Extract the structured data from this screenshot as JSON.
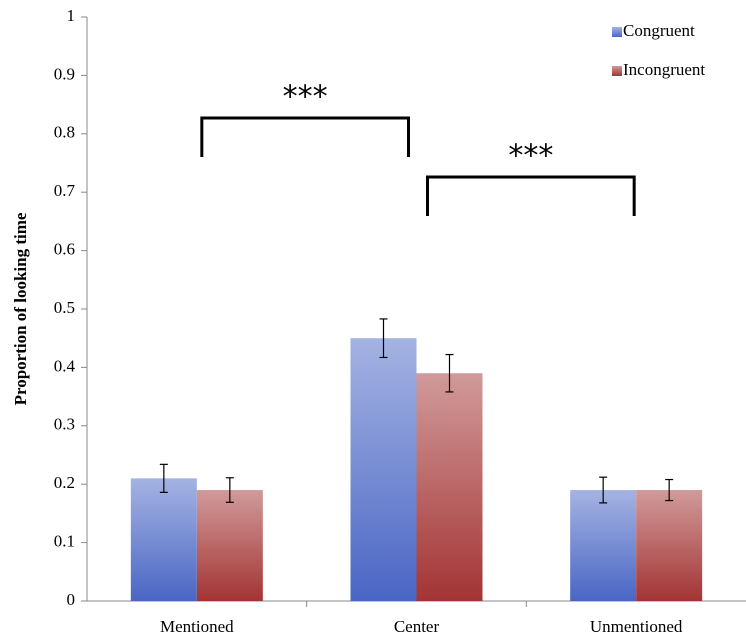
{
  "chart_data": {
    "type": "bar",
    "y_label": "Proportion of looking time",
    "categories": [
      "Mentioned",
      "Center",
      "Unmentioned"
    ],
    "series": [
      {
        "name": "Congruent",
        "color": "#4a66c4",
        "values": [
          0.21,
          0.45,
          0.19
        ],
        "errors": [
          0.024,
          0.033,
          0.022
        ]
      },
      {
        "name": "Incongruent",
        "color": "#a33434",
        "values": [
          0.19,
          0.39,
          0.19
        ],
        "errors": [
          0.021,
          0.032,
          0.018
        ]
      }
    ],
    "annotations": [
      "***",
      "***"
    ],
    "ylim": [
      0,
      1
    ],
    "yticks": [
      0,
      0.1,
      0.2,
      0.3,
      0.4,
      0.5,
      0.6,
      0.7,
      0.8,
      0.9,
      1
    ],
    "legend": "top-right"
  }
}
